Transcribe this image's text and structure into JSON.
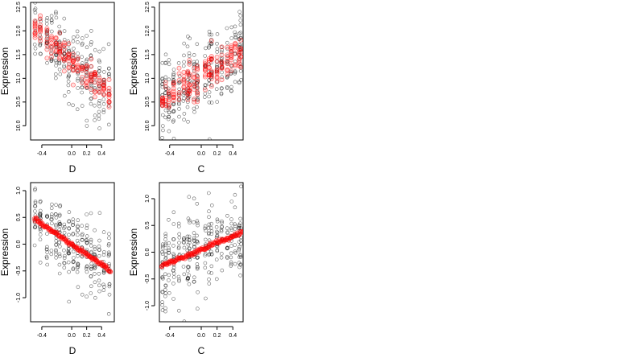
{
  "colors": {
    "observed": "#000000",
    "fitted": "#ff0000"
  },
  "chart_data": [
    {
      "id": "top-left",
      "type": "scatter",
      "xlabel": "D",
      "ylabel": "Expression",
      "xlim": [
        -0.55,
        0.57
      ],
      "ylim": [
        9.7,
        12.6
      ],
      "xticks": [
        -0.4,
        0.0,
        0.2,
        0.4
      ],
      "xtick_labels": [
        "-0.4",
        "0.0",
        "0.2",
        "0.4"
      ],
      "yticks": [
        10.0,
        10.5,
        11.0,
        11.5,
        12.0,
        12.5
      ],
      "ytick_labels": [
        "10.0",
        "10.5",
        "11.0",
        "11.5",
        "12.0",
        "12.5"
      ],
      "x_groups": [
        -0.49,
        -0.42,
        -0.33,
        -0.27,
        -0.21,
        -0.16,
        -0.1,
        -0.04,
        0.02,
        0.08,
        0.14,
        0.2,
        0.26,
        0.31,
        0.37,
        0.43,
        0.5
      ],
      "trend": {
        "y0": 11.35,
        "slope": -1.4,
        "sd": 0.37
      },
      "fitted_mode": "bands",
      "fitted_sd": 0.15
    },
    {
      "id": "top-right",
      "type": "scatter",
      "xlabel": "C",
      "ylabel": "Expression",
      "xlim": [
        -0.53,
        0.53
      ],
      "ylim": [
        9.7,
        12.6
      ],
      "xticks": [
        -0.4,
        0.0,
        0.2,
        0.4
      ],
      "xtick_labels": [
        "-0.4",
        "0.0",
        "0.2",
        "0.4"
      ],
      "yticks": [
        10.0,
        10.5,
        11.0,
        11.5,
        12.0,
        12.5
      ],
      "ytick_labels": [
        "10.0",
        "10.5",
        "11.0",
        "11.5",
        "12.0",
        "12.5"
      ],
      "x_groups": [
        -0.49,
        -0.45,
        -0.41,
        -0.35,
        -0.28,
        -0.22,
        -0.17,
        -0.15,
        -0.09,
        -0.05,
        0.05,
        0.1,
        0.13,
        0.2,
        0.26,
        0.33,
        0.38,
        0.43,
        0.48,
        0.5
      ],
      "trend": {
        "y0": 11.05,
        "slope": 1.05,
        "sd": 0.4
      },
      "fitted_mode": "bands",
      "fitted_sd": 0.2
    },
    {
      "id": "bottom-left",
      "type": "scatter",
      "xlabel": "D",
      "ylabel": "Expression",
      "xlim": [
        -0.55,
        0.57
      ],
      "ylim": [
        -1.45,
        1.15
      ],
      "xticks": [
        -0.4,
        0.0,
        0.2,
        0.4
      ],
      "xtick_labels": [
        "-0.4",
        "0.0",
        "0.2",
        "0.4"
      ],
      "yticks": [
        -1.0,
        -0.5,
        0.0,
        0.5,
        1.0
      ],
      "ytick_labels": [
        "-1.0",
        "-0.5",
        "0.0",
        "0.5",
        "1.0"
      ],
      "x_groups": [
        -0.49,
        -0.42,
        -0.33,
        -0.27,
        -0.21,
        -0.16,
        -0.1,
        -0.04,
        0.02,
        0.08,
        0.14,
        0.2,
        0.26,
        0.31,
        0.37,
        0.43,
        0.5
      ],
      "trend": {
        "y0": 0.0,
        "slope": -0.95,
        "sd": 0.35
      },
      "fitted_mode": "line",
      "fitted_xrange": [
        -0.5,
        0.52
      ],
      "fitted_sd": 0.02
    },
    {
      "id": "bottom-right",
      "type": "scatter",
      "xlabel": "C",
      "ylabel": "Expression",
      "xlim": [
        -0.53,
        0.53
      ],
      "ylim": [
        -1.3,
        1.3
      ],
      "xticks": [
        -0.4,
        0.0,
        0.2,
        0.4
      ],
      "xtick_labels": [
        "-0.4",
        "0.0",
        "0.2",
        "0.4"
      ],
      "yticks": [
        -1.0,
        -0.5,
        0.0,
        0.5,
        1.0
      ],
      "ytick_labels": [
        "-1.0",
        "-0.5",
        "0.0",
        "0.5",
        "1.0"
      ],
      "x_groups": [
        -0.49,
        -0.45,
        -0.41,
        -0.35,
        -0.28,
        -0.22,
        -0.17,
        -0.15,
        -0.09,
        -0.05,
        0.05,
        0.1,
        0.13,
        0.2,
        0.26,
        0.33,
        0.38,
        0.43,
        0.48,
        0.5
      ],
      "trend": {
        "y0": 0.05,
        "slope": 0.62,
        "sd": 0.4
      },
      "fitted_mode": "line",
      "fitted_xrange": [
        -0.5,
        0.52
      ],
      "fitted_sd": 0.02
    }
  ]
}
